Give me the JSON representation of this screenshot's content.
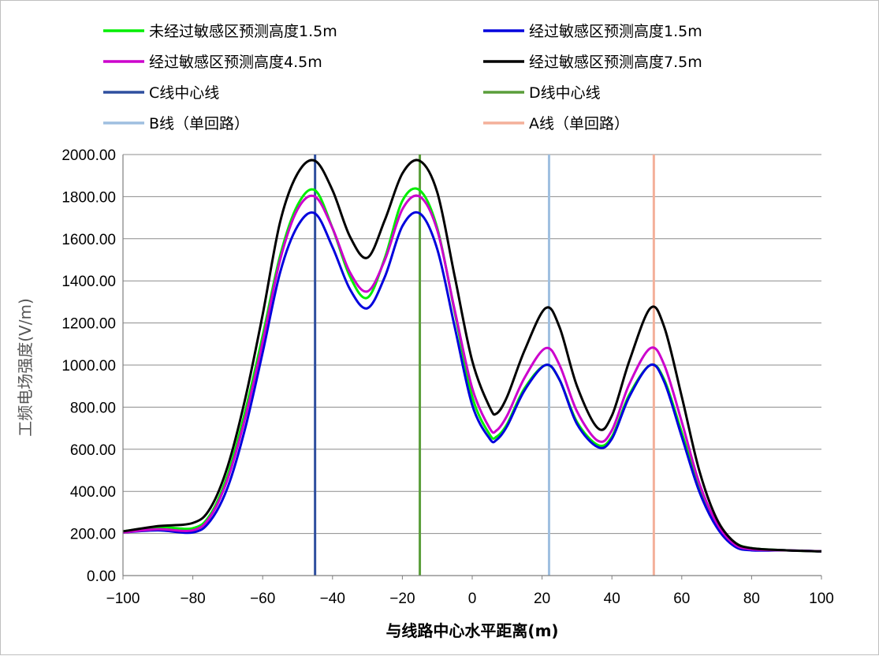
{
  "chart_data": {
    "type": "line",
    "xlabel": "与线路中心水平距离(m)",
    "ylabel": "工频电场强度(V/m)",
    "xlim": [
      -100,
      100
    ],
    "ylim": [
      0,
      2000
    ],
    "x_ticks": [
      "−100",
      "−80",
      "−60",
      "−40",
      "−20",
      "0",
      "20",
      "40",
      "60",
      "80",
      "100"
    ],
    "y_ticks": [
      "0.00",
      "200.00",
      "400.00",
      "600.00",
      "800.00",
      "1000.00",
      "1200.00",
      "1400.00",
      "1600.00",
      "1800.00",
      "2000.00"
    ],
    "grid": "horizontal",
    "legend_position": "top",
    "x": [
      -100,
      -90,
      -80,
      -75,
      -70,
      -65,
      -60,
      -55,
      -50,
      -45,
      -40,
      -35,
      -30,
      -25,
      -20,
      -15,
      -10,
      -5,
      0,
      5,
      7,
      10,
      15,
      21,
      25,
      30,
      36,
      40,
      45,
      51,
      55,
      60,
      65,
      70,
      75,
      80,
      90,
      100
    ],
    "series": [
      {
        "name": "未经过敏感区预测高度1.5m",
        "color": "#00ee00",
        "values": [
          210,
          230,
          225,
          290,
          480,
          780,
          1140,
          1520,
          1760,
          1830,
          1650,
          1420,
          1320,
          1510,
          1780,
          1830,
          1650,
          1250,
          850,
          670,
          660,
          720,
          890,
          1000,
          930,
          730,
          620,
          660,
          860,
          1000,
          930,
          680,
          420,
          250,
          160,
          130,
          120,
          115
        ]
      },
      {
        "name": "经过敏感区预测高度1.5m",
        "color": "#0000dd",
        "values": [
          205,
          215,
          205,
          260,
          420,
          700,
          1060,
          1440,
          1660,
          1720,
          1560,
          1360,
          1270,
          1420,
          1660,
          1720,
          1550,
          1180,
          810,
          650,
          645,
          710,
          880,
          1000,
          930,
          720,
          610,
          650,
          850,
          1000,
          920,
          660,
          400,
          230,
          140,
          120,
          120,
          115
        ]
      },
      {
        "name": "经过敏感区预测高度4.5m",
        "color": "#cc00cc",
        "values": [
          205,
          220,
          215,
          280,
          460,
          750,
          1110,
          1500,
          1740,
          1800,
          1650,
          1440,
          1350,
          1500,
          1740,
          1800,
          1640,
          1260,
          890,
          700,
          690,
          760,
          940,
          1080,
          1000,
          780,
          640,
          690,
          910,
          1080,
          1000,
          730,
          440,
          250,
          150,
          125,
          120,
          115
        ]
      },
      {
        "name": "经过敏感区预测高度7.5m",
        "color": "#000000",
        "values": [
          210,
          235,
          250,
          320,
          520,
          840,
          1240,
          1680,
          1910,
          1970,
          1830,
          1610,
          1510,
          1690,
          1910,
          1970,
          1820,
          1420,
          1020,
          800,
          770,
          850,
          1070,
          1270,
          1180,
          900,
          700,
          760,
          1020,
          1270,
          1180,
          850,
          500,
          270,
          160,
          130,
          120,
          115
        ]
      }
    ],
    "vertical_lines": [
      {
        "name": "C线中心线",
        "x": -45,
        "color": "#2f4f9f"
      },
      {
        "name": "D线中心线",
        "x": -15,
        "color": "#5a9e3a"
      },
      {
        "name": "B线（单回路）",
        "x": 22,
        "color": "#9fbfe0"
      },
      {
        "name": "A线（单回路）",
        "x": 52,
        "color": "#f4b09a"
      }
    ]
  }
}
